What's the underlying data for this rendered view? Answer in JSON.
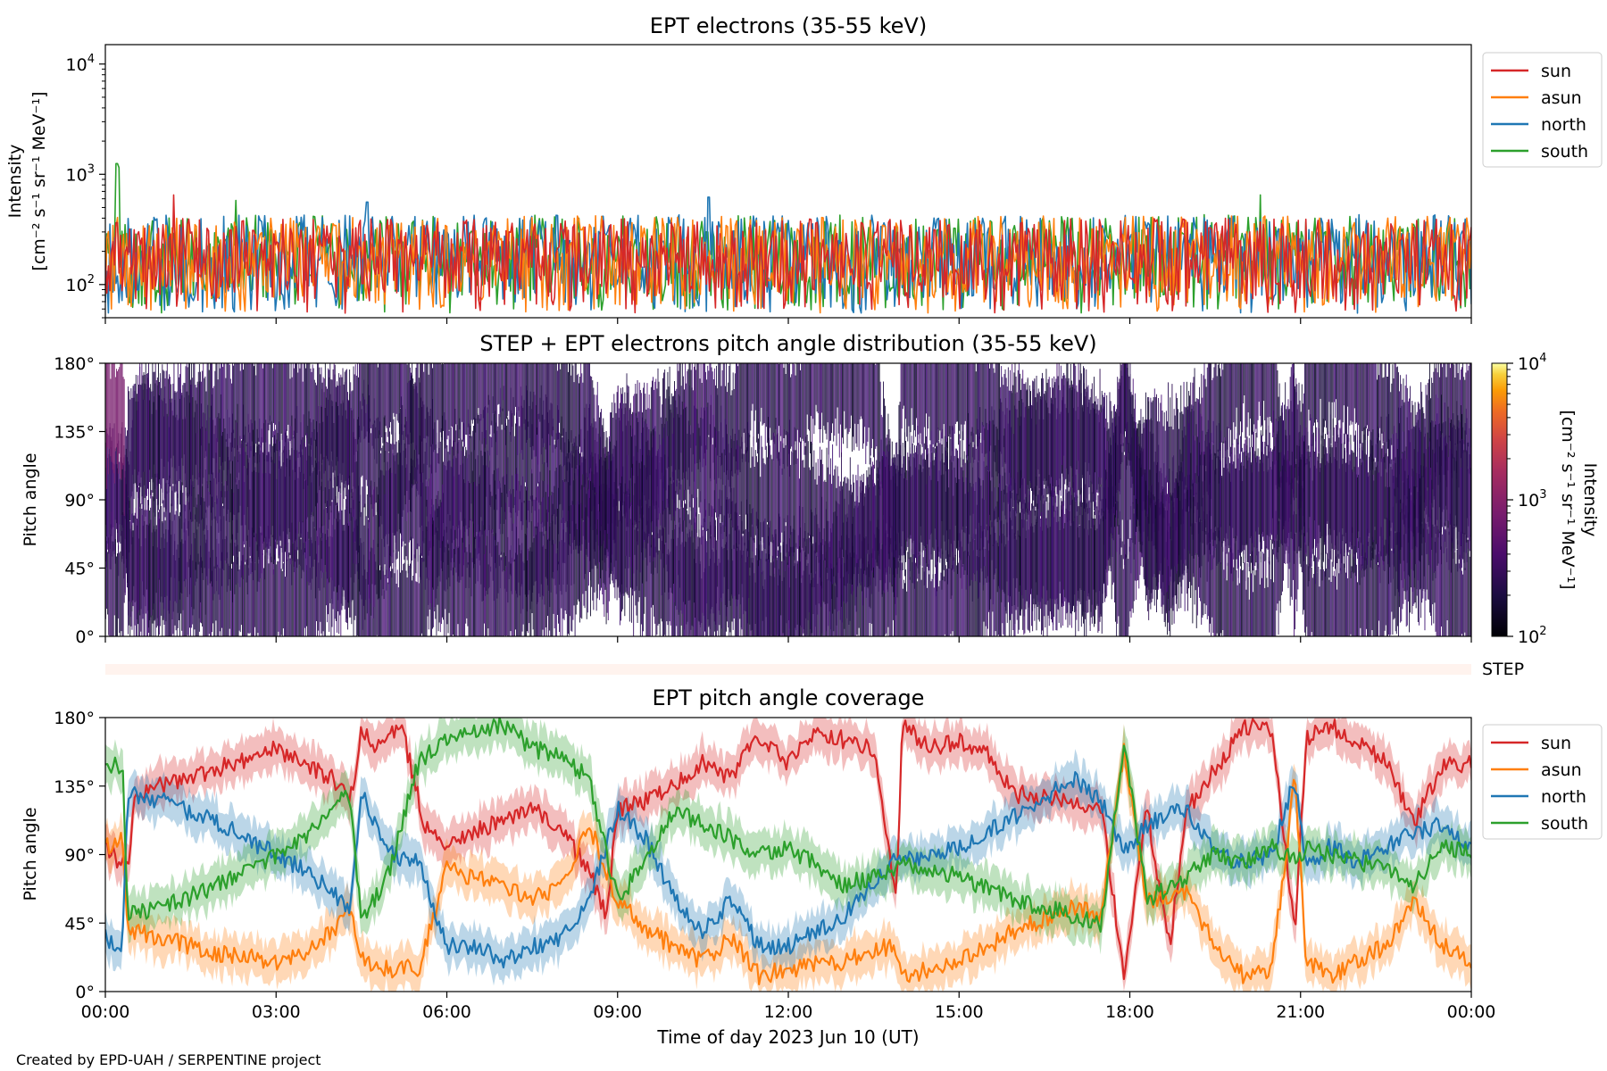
{
  "footer": "Created by EPD-UAH / SERPENTINE project",
  "chart_data": [
    {
      "id": "panel1",
      "type": "line",
      "title": "EPT electrons (35-55 keV)",
      "ylabel_lines": [
        "Intensity",
        "[cm⁻² s⁻¹ sr⁻¹ MeV⁻¹]"
      ],
      "yscale": "log",
      "ylim": [
        50,
        15000
      ],
      "xlim": [
        0,
        24
      ],
      "yticks": [
        {
          "v": 100,
          "base": "10",
          "exp": "2"
        },
        {
          "v": 1000,
          "base": "10",
          "exp": "3"
        },
        {
          "v": 10000,
          "base": "10",
          "exp": "4"
        }
      ],
      "legend": "top-right, outside",
      "series": [
        {
          "name": "sun",
          "color": "#d62728",
          "typical_range": [
            55,
            400
          ]
        },
        {
          "name": "asun",
          "color": "#ff7f0e",
          "typical_range": [
            55,
            420
          ]
        },
        {
          "name": "north",
          "color": "#1f77b4",
          "typical_range": [
            55,
            430
          ]
        },
        {
          "name": "south",
          "color": "#2ca02c",
          "typical_range": [
            55,
            430
          ]
        }
      ],
      "peaks": [
        {
          "series": "south",
          "x": 0.2,
          "y": 1250
        },
        {
          "series": "south",
          "x": 0.25,
          "y": 1150
        },
        {
          "series": "sun",
          "x": 1.2,
          "y": 650
        },
        {
          "series": "south",
          "x": 2.3,
          "y": 580
        },
        {
          "series": "north",
          "x": 4.6,
          "y": 560
        },
        {
          "series": "north",
          "x": 10.6,
          "y": 620
        },
        {
          "series": "south",
          "x": 20.3,
          "y": 650
        }
      ]
    },
    {
      "id": "panel2",
      "type": "heatmap",
      "title": "STEP + EPT electrons pitch angle distribution (35-55 keV)",
      "ylabel": "Pitch angle",
      "ylim": [
        0,
        180
      ],
      "xlim": [
        0,
        24
      ],
      "yticks": [
        "0°",
        "45°",
        "90°",
        "135°",
        "180°"
      ],
      "colorbar": {
        "label_lines": [
          "Intensity",
          "[cm⁻² s⁻¹ sr⁻¹ MeV⁻¹]"
        ],
        "scale": "log",
        "range": [
          100,
          10000
        ],
        "ticks": [
          {
            "base": "10",
            "exp": "2"
          },
          {
            "base": "10",
            "exp": "3"
          },
          {
            "base": "10",
            "exp": "4"
          }
        ],
        "colormap": "inferno"
      },
      "step_label": "STEP"
    },
    {
      "id": "panel3",
      "type": "line",
      "title": "EPT pitch angle coverage",
      "ylabel": "Pitch angle",
      "xlabel": "Time of day 2023 Jun 10 (UT)",
      "ylim": [
        0,
        180
      ],
      "xlim": [
        0,
        24
      ],
      "yticks": [
        "0°",
        "45°",
        "90°",
        "135°",
        "180°"
      ],
      "xticks": [
        "00:00",
        "03:00",
        "06:00",
        "09:00",
        "12:00",
        "15:00",
        "18:00",
        "21:00",
        "00:00"
      ],
      "legend": "top-right, outside",
      "series": [
        {
          "name": "sun",
          "color": "#d62728",
          "points": [
            [
              0,
              95
            ],
            [
              0.4,
              80
            ],
            [
              0.5,
              130
            ],
            [
              1.5,
              140
            ],
            [
              3,
              160
            ],
            [
              4,
              140
            ],
            [
              4.3,
              125
            ],
            [
              4.5,
              170
            ],
            [
              4.8,
              160
            ],
            [
              5.2,
              175
            ],
            [
              5.6,
              110
            ],
            [
              6,
              95
            ],
            [
              6.8,
              110
            ],
            [
              7.5,
              120
            ],
            [
              8,
              105
            ],
            [
              8.5,
              80
            ],
            [
              8.8,
              50
            ],
            [
              9,
              120
            ],
            [
              9.5,
              125
            ],
            [
              10,
              135
            ],
            [
              10.5,
              150
            ],
            [
              11,
              140
            ],
            [
              11.4,
              170
            ],
            [
              12,
              150
            ],
            [
              12.5,
              170
            ],
            [
              13.5,
              160
            ],
            [
              13.9,
              60
            ],
            [
              14,
              175
            ],
            [
              14.5,
              160
            ],
            [
              15,
              165
            ],
            [
              15.5,
              155
            ],
            [
              16,
              130
            ],
            [
              17,
              125
            ],
            [
              17.5,
              120
            ],
            [
              17.9,
              10
            ],
            [
              18.3,
              120
            ],
            [
              18.7,
              30
            ],
            [
              19,
              120
            ],
            [
              19.4,
              140
            ],
            [
              20,
              175
            ],
            [
              20.5,
              170
            ],
            [
              20.9,
              40
            ],
            [
              21.1,
              165
            ],
            [
              21.5,
              175
            ],
            [
              22,
              165
            ],
            [
              22.5,
              150
            ],
            [
              23,
              110
            ],
            [
              23.5,
              150
            ],
            [
              24,
              150
            ]
          ]
        },
        {
          "name": "asun",
          "color": "#ff7f0e",
          "points": [
            [
              0,
              95
            ],
            [
              0.3,
              100
            ],
            [
              0.4,
              40
            ],
            [
              1,
              35
            ],
            [
              2,
              25
            ],
            [
              3,
              20
            ],
            [
              3.5,
              25
            ],
            [
              4,
              40
            ],
            [
              4.3,
              55
            ],
            [
              4.5,
              20
            ],
            [
              5,
              15
            ],
            [
              5.5,
              15
            ],
            [
              6,
              80
            ],
            [
              6.5,
              75
            ],
            [
              7,
              70
            ],
            [
              7.5,
              60
            ],
            [
              8,
              70
            ],
            [
              8.5,
              110
            ],
            [
              9,
              60
            ],
            [
              9.5,
              40
            ],
            [
              10,
              30
            ],
            [
              10.5,
              20
            ],
            [
              11,
              35
            ],
            [
              11.5,
              10
            ],
            [
              12,
              15
            ],
            [
              13,
              20
            ],
            [
              13.8,
              30
            ],
            [
              14,
              10
            ],
            [
              15,
              20
            ],
            [
              16,
              40
            ],
            [
              17,
              55
            ],
            [
              17.5,
              50
            ],
            [
              17.9,
              160
            ],
            [
              18.3,
              60
            ],
            [
              19,
              65
            ],
            [
              19.5,
              30
            ],
            [
              20,
              10
            ],
            [
              20.5,
              15
            ],
            [
              20.9,
              140
            ],
            [
              21.1,
              20
            ],
            [
              21.5,
              10
            ],
            [
              22,
              20
            ],
            [
              22.5,
              30
            ],
            [
              23,
              60
            ],
            [
              23.5,
              30
            ],
            [
              24,
              20
            ]
          ]
        },
        {
          "name": "north",
          "color": "#1f77b4",
          "points": [
            [
              0,
              35
            ],
            [
              0.3,
              30
            ],
            [
              0.4,
              130
            ],
            [
              1,
              125
            ],
            [
              2,
              110
            ],
            [
              3,
              90
            ],
            [
              3.5,
              80
            ],
            [
              4,
              65
            ],
            [
              4.3,
              50
            ],
            [
              4.5,
              130
            ],
            [
              5,
              90
            ],
            [
              5.5,
              85
            ],
            [
              6,
              30
            ],
            [
              6.5,
              30
            ],
            [
              7,
              20
            ],
            [
              7.5,
              30
            ],
            [
              8,
              35
            ],
            [
              8.5,
              60
            ],
            [
              9,
              120
            ],
            [
              9.5,
              100
            ],
            [
              10,
              60
            ],
            [
              10.5,
              40
            ],
            [
              11,
              60
            ],
            [
              11.5,
              30
            ],
            [
              12,
              30
            ],
            [
              13,
              50
            ],
            [
              13.9,
              90
            ],
            [
              14,
              85
            ],
            [
              15,
              95
            ],
            [
              16,
              115
            ],
            [
              17,
              140
            ],
            [
              17.5,
              125
            ],
            [
              17.9,
              90
            ],
            [
              18.3,
              110
            ],
            [
              19,
              120
            ],
            [
              19.5,
              90
            ],
            [
              20,
              85
            ],
            [
              20.5,
              90
            ],
            [
              20.9,
              140
            ],
            [
              21.1,
              80
            ],
            [
              21.5,
              95
            ],
            [
              22,
              85
            ],
            [
              22.5,
              95
            ],
            [
              23,
              105
            ],
            [
              23.5,
              110
            ],
            [
              24,
              95
            ]
          ]
        },
        {
          "name": "south",
          "color": "#2ca02c",
          "points": [
            [
              0,
              150
            ],
            [
              0.3,
              148
            ],
            [
              0.4,
              50
            ],
            [
              1,
              55
            ],
            [
              2,
              70
            ],
            [
              3,
              90
            ],
            [
              3.5,
              100
            ],
            [
              4,
              125
            ],
            [
              4.3,
              130
            ],
            [
              4.5,
              45
            ],
            [
              5,
              80
            ],
            [
              5.5,
              150
            ],
            [
              6,
              165
            ],
            [
              6.5,
              170
            ],
            [
              7,
              175
            ],
            [
              7.5,
              160
            ],
            [
              8,
              155
            ],
            [
              8.5,
              140
            ],
            [
              9,
              60
            ],
            [
              9.5,
              85
            ],
            [
              10,
              120
            ],
            [
              10.5,
              110
            ],
            [
              11,
              100
            ],
            [
              11.5,
              90
            ],
            [
              12,
              95
            ],
            [
              13,
              70
            ],
            [
              13.9,
              80
            ],
            [
              14,
              85
            ],
            [
              15,
              75
            ],
            [
              16,
              60
            ],
            [
              17,
              50
            ],
            [
              17.5,
              45
            ],
            [
              17.9,
              165
            ],
            [
              18.3,
              60
            ],
            [
              19,
              75
            ],
            [
              19.5,
              90
            ],
            [
              20,
              85
            ],
            [
              20.5,
              95
            ],
            [
              20.9,
              85
            ],
            [
              21.1,
              95
            ],
            [
              21.5,
              90
            ],
            [
              22,
              85
            ],
            [
              22.5,
              80
            ],
            [
              23,
              70
            ],
            [
              23.5,
              95
            ],
            [
              24,
              90
            ]
          ]
        }
      ]
    }
  ]
}
